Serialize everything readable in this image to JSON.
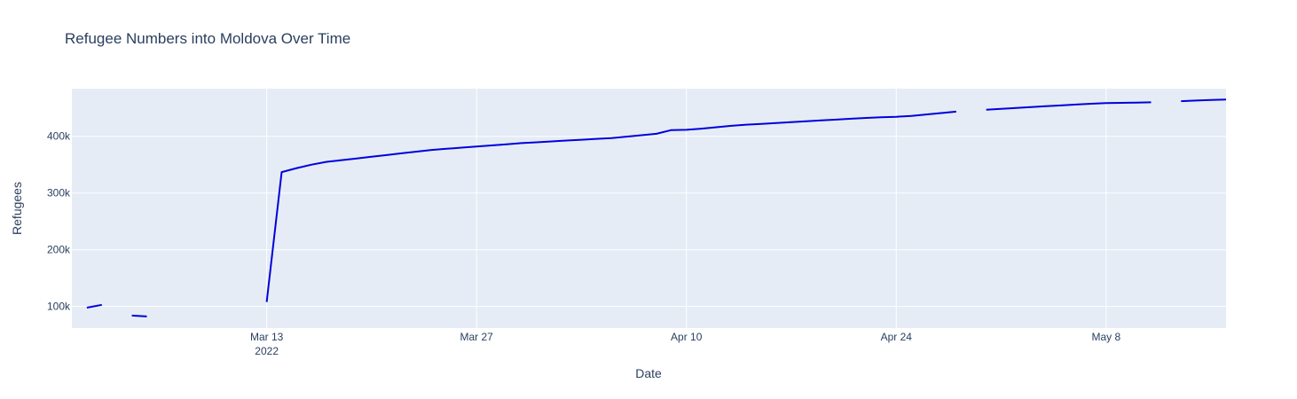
{
  "chart_data": {
    "type": "line",
    "title": "Refugee Numbers into Moldova Over Time",
    "xlabel": "Date",
    "ylabel": "Refugees",
    "x_type": "date",
    "xlim": [
      "2022-02-28",
      "2022-05-16"
    ],
    "ylim": [
      62000,
      484000
    ],
    "x_ticks": [
      {
        "date": "2022-03-13",
        "label": "Mar 13",
        "sublabel": "2022"
      },
      {
        "date": "2022-03-27",
        "label": "Mar 27"
      },
      {
        "date": "2022-04-10",
        "label": "Apr 10"
      },
      {
        "date": "2022-04-24",
        "label": "Apr 24"
      },
      {
        "date": "2022-05-08",
        "label": "May 8"
      }
    ],
    "y_ticks": [
      {
        "value": 100000,
        "label": "100k"
      },
      {
        "value": 200000,
        "label": "200k"
      },
      {
        "value": 300000,
        "label": "300k"
      },
      {
        "value": 400000,
        "label": "400k"
      }
    ],
    "grid": true,
    "line_color": "#0000dd",
    "plot_bg": "#e5ecf6",
    "series": [
      {
        "segments": [
          [
            [
              "2022-03-01",
              98000
            ],
            [
              "2022-03-02",
              103000
            ]
          ],
          [
            [
              "2022-03-04",
              84000
            ],
            [
              "2022-03-05",
              82500
            ]
          ],
          [
            [
              "2022-03-13",
              108000
            ],
            [
              "2022-03-14",
              337000
            ],
            [
              "2022-03-15",
              344000
            ],
            [
              "2022-03-16",
              350000
            ],
            [
              "2022-03-17",
              355000
            ],
            [
              "2022-03-18",
              358000
            ],
            [
              "2022-03-19",
              361000
            ],
            [
              "2022-03-20",
              364000
            ],
            [
              "2022-03-21",
              367000
            ],
            [
              "2022-03-22",
              370000
            ],
            [
              "2022-03-23",
              373000
            ],
            [
              "2022-03-24",
              376000
            ],
            [
              "2022-03-25",
              378000
            ],
            [
              "2022-03-26",
              380000
            ],
            [
              "2022-03-27",
              382000
            ],
            [
              "2022-03-28",
              384000
            ],
            [
              "2022-03-29",
              386000
            ],
            [
              "2022-03-30",
              388000
            ],
            [
              "2022-03-31",
              389500
            ],
            [
              "2022-04-01",
              391000
            ],
            [
              "2022-04-02",
              392500
            ],
            [
              "2022-04-03",
              394000
            ],
            [
              "2022-04-04",
              395500
            ],
            [
              "2022-04-05",
              397000
            ],
            [
              "2022-04-06",
              399500
            ],
            [
              "2022-04-07",
              402000
            ],
            [
              "2022-04-08",
              404500
            ],
            [
              "2022-04-09",
              411000
            ],
            [
              "2022-04-10",
              411500
            ],
            [
              "2022-04-11",
              413500
            ],
            [
              "2022-04-12",
              416000
            ],
            [
              "2022-04-13",
              418500
            ],
            [
              "2022-04-14",
              420500
            ],
            [
              "2022-04-15",
              422000
            ],
            [
              "2022-04-16",
              423500
            ],
            [
              "2022-04-17",
              425000
            ],
            [
              "2022-04-18",
              426500
            ],
            [
              "2022-04-19",
              428000
            ],
            [
              "2022-04-20",
              429500
            ],
            [
              "2022-04-21",
              431000
            ],
            [
              "2022-04-22",
              432500
            ],
            [
              "2022-04-23",
              433500
            ],
            [
              "2022-04-24",
              434500
            ],
            [
              "2022-04-25",
              436000
            ],
            [
              "2022-04-26",
              438500
            ],
            [
              "2022-04-27",
              441000
            ],
            [
              "2022-04-28",
              443500
            ]
          ],
          [
            [
              "2022-04-30",
              447000
            ],
            [
              "2022-05-01",
              448500
            ],
            [
              "2022-05-02",
              450000
            ],
            [
              "2022-05-03",
              451500
            ],
            [
              "2022-05-04",
              453000
            ],
            [
              "2022-05-05",
              454500
            ],
            [
              "2022-05-06",
              456000
            ],
            [
              "2022-05-07",
              457500
            ],
            [
              "2022-05-08",
              458500
            ],
            [
              "2022-05-09",
              459000
            ],
            [
              "2022-05-10",
              459500
            ],
            [
              "2022-05-11",
              460000
            ]
          ],
          [
            [
              "2022-05-13",
              462000
            ],
            [
              "2022-05-14",
              463000
            ],
            [
              "2022-05-15",
              464000
            ],
            [
              "2022-05-16",
              465000
            ]
          ]
        ]
      }
    ]
  }
}
